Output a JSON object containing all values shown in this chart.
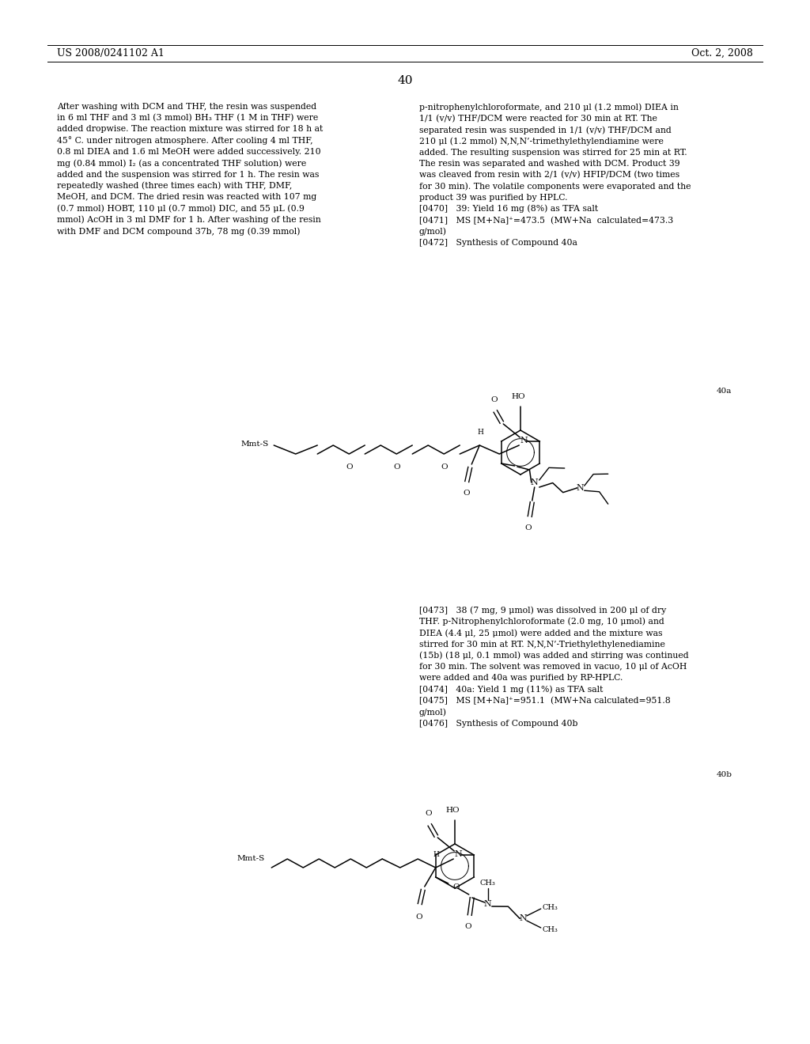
{
  "background_color": "#ffffff",
  "text_color": "#000000",
  "page_header_left": "US 2008/0241102 A1",
  "page_header_right": "Oct. 2, 2008",
  "page_number": "40",
  "left_col_text": "After washing with DCM and THF, the resin was suspended\nin 6 ml THF and 3 ml (3 mmol) BH₃ THF (1 M in THF) were\nadded dropwise. The reaction mixture was stirred for 18 h at\n45° C. under nitrogen atmosphere. After cooling 4 ml THF,\n0.8 ml DIEA and 1.6 ml MeOH were added successively. 210\nmg (0.84 mmol) I₂ (as a concentrated THF solution) were\nadded and the suspension was stirred for 1 h. The resin was\nrepeatedly washed (three times each) with THF, DMF,\nMeOH, and DCM. The dried resin was reacted with 107 mg\n(0.7 mmol) HOBT, 110 μl (0.7 mmol) DIC, and 55 μL (0.9\nmmol) AcOH in 3 ml DMF for 1 h. After washing of the resin\nwith DMF and DCM compound 37b, 78 mg (0.39 mmol)",
  "right_col_text": "p-nitrophenylchloroformate, and 210 μl (1.2 mmol) DIEA in\n1/1 (v/v) THF/DCM were reacted for 30 min at RT. The\nseparated resin was suspended in 1/1 (v/v) THF/DCM and\n210 μl (1.2 mmol) N,N,N’-trimethylethylendiamine were\nadded. The resulting suspension was stirred for 25 min at RT.\nThe resin was separated and washed with DCM. Product 39\nwas cleaved from resin with 2/1 (v/v) HFIP/DCM (two times\nfor 30 min). The volatile components were evaporated and the\nproduct 39 was purified by HPLC.\n[0470]   39: Yield 16 mg (8%) as TFA salt\n[0471]   MS [M+Na]⁺=473.5  (MW+Na  calculated=473.3\ng/mol)\n[0472]   Synthesis of Compound 40a",
  "label_40a": "40a",
  "label_40b": "40b",
  "para_473_476": "[0473]   38 (7 mg, 9 μmol) was dissolved in 200 μl of dry\nTHF. p-Nitrophenylchloroformate (2.0 mg, 10 μmol) and\nDIEA (4.4 μl, 25 μmol) were added and the mixture was\nstirred for 30 min at RT. N,N,N’-Triethylethylenediamine\n(15b) (18 μl, 0.1 mmol) was added and stirring was continued\nfor 30 min. The solvent was removed in vacuo, 10 μl of AcOH\nwere added and 40a was purified by RP-HPLC.\n[0474]   40a: Yield 1 mg (11%) as TFA salt\n[0475]   MS [M+Na]⁺=951.1  (MW+Na calculated=951.8\ng/mol)\n[0476]   Synthesis of Compound 40b"
}
